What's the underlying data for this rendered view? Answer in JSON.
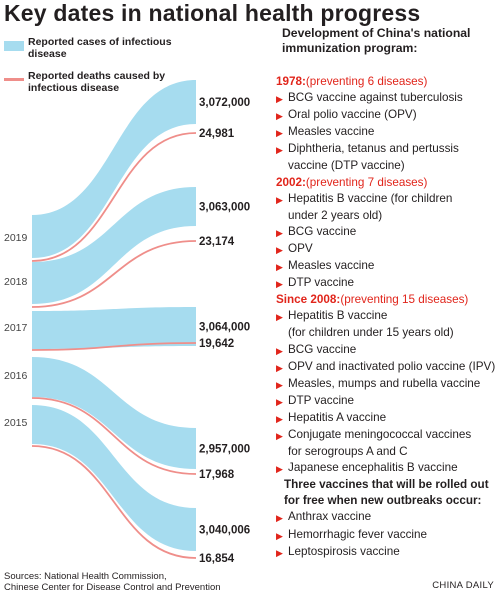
{
  "title": "Key dates in national health progress",
  "legend": {
    "cases": "Reported cases of infectious disease",
    "deaths": "Reported deaths caused by infectious disease",
    "cases_color": "#a6dcef",
    "deaths_color": "#ef8e8a"
  },
  "chart_data": {
    "type": "area",
    "title": "Key dates in national health progress",
    "series_names": [
      "Reported cases of infectious disease",
      "Reported deaths caused by infectious disease"
    ],
    "years": [
      "2019",
      "2018",
      "2017",
      "2016",
      "2015"
    ],
    "cases": [
      3072000,
      3063000,
      3064000,
      2957000,
      3040006
    ],
    "cases_labels": [
      "3,072,000",
      "3,063,000",
      "3,064,000",
      "2,957,000",
      "3,040,006"
    ],
    "deaths": [
      24981,
      23174,
      19642,
      17968,
      16854
    ],
    "deaths_labels": [
      "24,981",
      "23,174",
      "19,642",
      "17,968",
      "16,854"
    ]
  },
  "program": {
    "title": "Development of China's national immunization program:",
    "sections": [
      {
        "year": "1978:",
        "note": " (preventing 6 diseases)",
        "items": [
          [
            "BCG vaccine against tuberculosis"
          ],
          [
            "Oral polio vaccine (OPV)"
          ],
          [
            "Measles vaccine"
          ],
          [
            "Diphtheria, tetanus and pertussis",
            "vaccine (DTP vaccine)"
          ]
        ]
      },
      {
        "year": "2002:",
        "note": " (preventing 7 diseases)",
        "items": [
          [
            "Hepatitis B vaccine (for children",
            "under 2 years old)"
          ],
          [
            "BCG vaccine"
          ],
          [
            "OPV"
          ],
          [
            "Measles vaccine"
          ],
          [
            "DTP vaccine"
          ]
        ]
      },
      {
        "year": "Since 2008:",
        "note": " (preventing 15 diseases)",
        "items": [
          [
            "Hepatitis B vaccine",
            "(for children under 15 years old)"
          ],
          [
            "BCG vaccine"
          ],
          [
            "OPV and inactivated polio vaccine (IPV)"
          ],
          [
            "Measles, mumps and rubella vaccine"
          ],
          [
            "DTP vaccine"
          ],
          [
            "Hepatitis A vaccine"
          ],
          [
            "Conjugate meningococcal vaccines",
            "for serogroups A and C"
          ],
          [
            "Japanese encephalitis B vaccine"
          ]
        ]
      }
    ],
    "free_title": [
      "Three vaccines that will be rolled out",
      "for free when new outbreaks occur:"
    ],
    "free_items": [
      [
        "Anthrax vaccine"
      ],
      [
        "Hemorrhagic fever vaccine"
      ],
      [
        "Leptospirosis vaccine"
      ]
    ]
  },
  "sources": [
    "Sources: National Health Commission,",
    "Chinese Center for Disease Control and Prevention"
  ],
  "credit": "CHINA DAILY"
}
